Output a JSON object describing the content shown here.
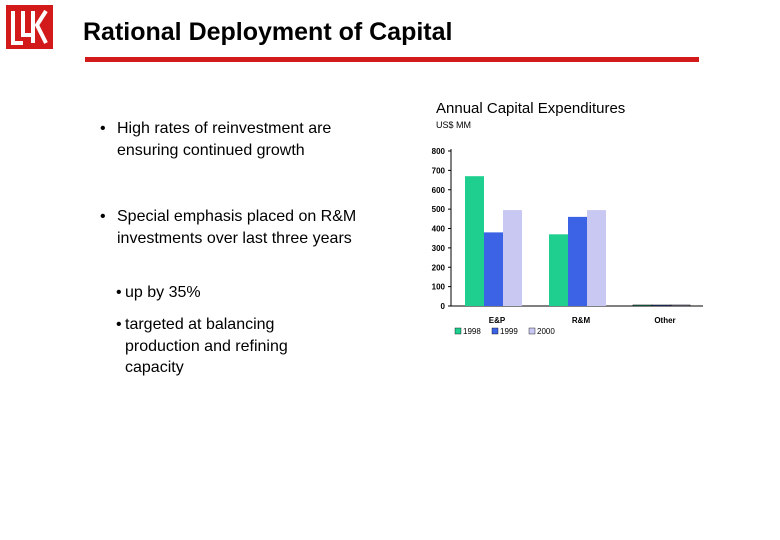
{
  "slide": {
    "logo_text": "LUK",
    "title": "Rational Deployment of Capital",
    "accent_color": "#d31a1a"
  },
  "bullets": {
    "item1": "High rates of reinvestment are ensuring continued growth",
    "item2": "Special emphasis placed on R&M investments over last three years",
    "sub1": "up by 35%",
    "sub2": "targeted at balancing production and refining capacity",
    "marker": "•"
  },
  "chart_data": {
    "type": "bar",
    "title": "Annual Capital Expenditures",
    "ylabel": "US$ MM",
    "xlabel": "",
    "categories": [
      "E&P",
      "R&M",
      "Other"
    ],
    "series": [
      {
        "name": "1998",
        "color": "#1fcf8f",
        "values": [
          670,
          370,
          5
        ]
      },
      {
        "name": "1999",
        "color": "#3c63e6",
        "values": [
          380,
          460,
          5
        ]
      },
      {
        "name": "2000",
        "color": "#c8c8f2",
        "values": [
          495,
          495,
          5
        ]
      }
    ],
    "ylim": [
      0,
      800
    ],
    "yticks": [
      0,
      100,
      200,
      300,
      400,
      500,
      600,
      700,
      800
    ],
    "legend": "bottom-left",
    "grid": false
  }
}
